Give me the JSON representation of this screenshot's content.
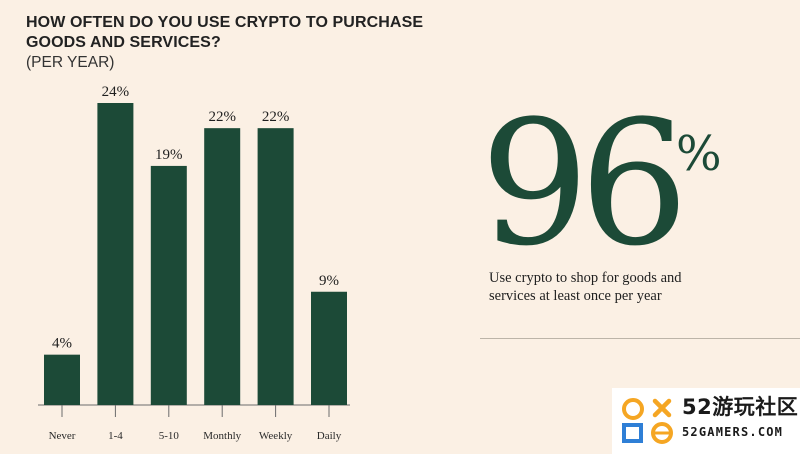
{
  "chart_data": {
    "type": "bar",
    "title": "HOW OFTEN DO YOU USE CRYPTO TO PURCHASE GOODS AND SERVICES?",
    "subtitle": "(PER YEAR)",
    "categories": [
      "Never",
      "1-4",
      "5-10",
      "Monthly",
      "Weekly",
      "Daily"
    ],
    "values": [
      4,
      24,
      19,
      22,
      22,
      9
    ],
    "data_labels": [
      "4%",
      "24%",
      "19%",
      "22%",
      "22%",
      "9%"
    ],
    "unit": "%",
    "ylim": [
      0,
      24
    ],
    "grid": false,
    "bar_color": "#1c4a37"
  },
  "stat": {
    "value": "96",
    "unit": "%",
    "caption": "Use crypto to shop for goods and services at least once per year"
  },
  "watermark": {
    "text_cn": "52游玩社区",
    "text_en": "52GAMERS.COM"
  },
  "colors": {
    "background": "#fbf0e4",
    "accent": "#1c4a37",
    "watermark_orange": "#f5a623",
    "watermark_blue": "#2f7fd6"
  }
}
